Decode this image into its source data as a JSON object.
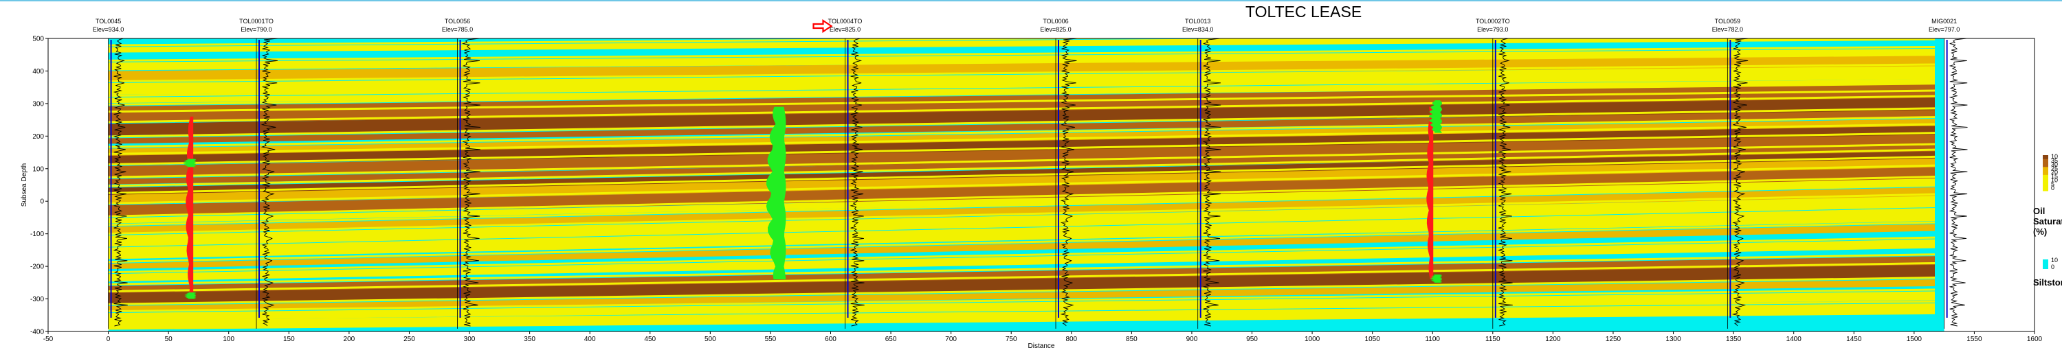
{
  "page": {
    "title": "TOLTEC LEASE"
  },
  "chart_data": {
    "type": "heatmap",
    "title": "TOLTEC LEASE",
    "xlabel": "Distance",
    "ylabel": "Subsea Depth",
    "xlim": [
      -50,
      1600
    ],
    "ylim": [
      -400,
      500
    ],
    "x_ticks": [
      -50,
      0,
      50,
      100,
      150,
      200,
      250,
      300,
      350,
      400,
      450,
      500,
      550,
      600,
      650,
      700,
      750,
      800,
      850,
      900,
      950,
      1000,
      1050,
      1100,
      1150,
      1200,
      1250,
      1300,
      1350,
      1400,
      1450,
      1500,
      1550,
      1600
    ],
    "y_ticks": [
      -400,
      -300,
      -200,
      -100,
      0,
      100,
      200,
      300,
      400,
      500
    ],
    "grid": false,
    "section_x_range": [
      0,
      1525
    ],
    "colors": {
      "siltstone": "#00f0f0",
      "oil_low": "#f2f200",
      "oil_mid": "#eab800",
      "oil_high": "#b46414",
      "oil_max": "#8a4410",
      "log_fill_red": "#ff1a1a",
      "log_fill_green": "#22ee22",
      "well_blue": "#0000cc",
      "highlight_arrow": "#ff0000"
    },
    "wells": [
      {
        "name": "TOL0045",
        "elevation": "Elev=934.0",
        "x": 0
      },
      {
        "name": "TOL0001TO",
        "elevation": "Elev=790.0",
        "x": 123
      },
      {
        "name": "TOL0056",
        "elevation": "Elev=785.0",
        "x": 290
      },
      {
        "name": "TOL0004TO",
        "elevation": "Elev=825.0",
        "x": 612
      },
      {
        "name": "TOL0006",
        "elevation": "Elev=825.0",
        "x": 787
      },
      {
        "name": "TOL0013",
        "elevation": "Elev=834.0",
        "x": 905
      },
      {
        "name": "TOL0002TO",
        "elevation": "Elev=793.0",
        "x": 1150
      },
      {
        "name": "TOL0059",
        "elevation": "Elev=782.0",
        "x": 1345
      },
      {
        "name": "MIG0021",
        "elevation": "Elev=797.0",
        "x": 1525
      }
    ],
    "highlighted_well": "TOL0004TO",
    "layers": [
      {
        "sat": 1,
        "y_left": 465,
        "y_right": 505
      },
      {
        "sat": 1,
        "y_left": 415,
        "y_right": 455
      },
      {
        "sat": 2,
        "y_left": 385,
        "y_right": 430
      },
      {
        "sat": 1,
        "y_left": 345,
        "y_right": 395
      },
      {
        "sat": 1,
        "y_left": 310,
        "y_right": 365
      },
      {
        "sat": 3,
        "y_left": 280,
        "y_right": 345
      },
      {
        "sat": 3,
        "y_left": 255,
        "y_right": 318
      },
      {
        "sat": 4,
        "y_left": 220,
        "y_right": 298
      },
      {
        "sat": 3,
        "y_left": 185,
        "y_right": 270
      },
      {
        "sat": 2,
        "y_left": 150,
        "y_right": 240
      },
      {
        "sat": 4,
        "y_left": 125,
        "y_right": 215
      },
      {
        "sat": 3,
        "y_left": 90,
        "y_right": 185
      },
      {
        "sat": 3,
        "y_left": 60,
        "y_right": 160
      },
      {
        "sat": 4,
        "y_left": 30,
        "y_right": 140
      },
      {
        "sat": 2,
        "y_left": 5,
        "y_right": 115
      },
      {
        "sat": 3,
        "y_left": -30,
        "y_right": 85
      },
      {
        "sat": 1,
        "y_left": -60,
        "y_right": 60
      },
      {
        "sat": 2,
        "y_left": -90,
        "y_right": 30
      },
      {
        "sat": 1,
        "y_left": -120,
        "y_right": 0
      },
      {
        "sat": 1,
        "y_left": -160,
        "y_right": -40
      },
      {
        "sat": 2,
        "y_left": -200,
        "y_right": -80
      },
      {
        "sat": 1,
        "y_left": -235,
        "y_right": -130
      },
      {
        "sat": 3,
        "y_left": -275,
        "y_right": -185
      },
      {
        "sat": 4,
        "y_left": -300,
        "y_right": -215
      },
      {
        "sat": 2,
        "y_left": -330,
        "y_right": -250
      },
      {
        "sat": 1,
        "y_left": -355,
        "y_right": -290
      },
      {
        "sat": 1,
        "y_left": -380,
        "y_right": -330
      }
    ],
    "log_fills": [
      {
        "color": "red",
        "x": 70,
        "y_top": 260,
        "y_bottom": -290,
        "max_width": 10
      },
      {
        "color": "green",
        "x": 70,
        "y_top": 130,
        "y_bottom": 105,
        "max_width": 14
      },
      {
        "color": "green",
        "x": 70,
        "y_top": -280,
        "y_bottom": -300,
        "max_width": 12
      },
      {
        "color": "red",
        "x": 560,
        "y_top": 260,
        "y_bottom": -220,
        "max_width": 8
      },
      {
        "color": "green",
        "x": 560,
        "y_top": 290,
        "y_bottom": -240,
        "max_width": 24
      },
      {
        "color": "red",
        "x": 1100,
        "y_top": 290,
        "y_bottom": -240,
        "max_width": 9
      },
      {
        "color": "green",
        "x": 1105,
        "y_top": 310,
        "y_bottom": 210,
        "max_width": 14
      },
      {
        "color": "green",
        "x": 1105,
        "y_top": -225,
        "y_bottom": -250,
        "max_width": 12
      }
    ],
    "legend": {
      "placement": "right",
      "oil_saturation": {
        "title": "Oil Saturation (%)",
        "labels": [
          "10",
          "35",
          "30",
          "25",
          "20",
          "15",
          "10",
          "5",
          "0"
        ]
      },
      "siltstone": {
        "title": "Siltstone",
        "labels": [
          "10",
          "0"
        ]
      }
    }
  }
}
